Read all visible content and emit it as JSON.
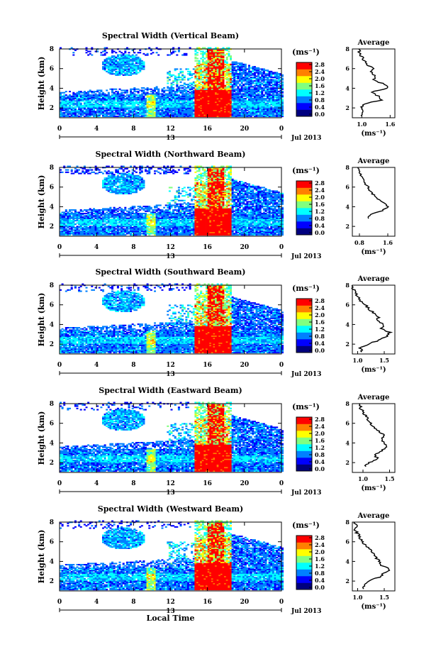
{
  "chart_data": {
    "type": "heatmap",
    "shared": {
      "ylabel": "Height (km)",
      "x_ticks": [
        "0",
        "4",
        "8",
        "12",
        "16",
        "20",
        "0"
      ],
      "xlim": [
        0,
        24
      ],
      "ylim": [
        1,
        8
      ],
      "y_ticks": [
        "2",
        "4",
        "6",
        "8"
      ],
      "day_label": "13",
      "month_label": "Jul 2013",
      "xlabel": "Local Time",
      "colorbar_unit": "(ms⁻¹)",
      "colorbar_ticks": [
        "0.0",
        "0.4",
        "0.8",
        "1.2",
        "1.6",
        "2.0",
        "2.4",
        "2.8"
      ],
      "colorbar_range": [
        0,
        3
      ],
      "colors": [
        "#00007f",
        "#0000ff",
        "#0080ff",
        "#00ffff",
        "#80ff80",
        "#ffff00",
        "#ff8000",
        "#ff0000"
      ],
      "avg_title": "Average",
      "avg_xlabel": "(ms⁻¹)",
      "avg_yticks": [
        "2",
        "4",
        "6",
        "8"
      ]
    },
    "panels": [
      {
        "title": "Spectral Width (Vertical Beam)",
        "avg_xticks": [
          "1.0",
          "1.6"
        ],
        "avg_xlim": [
          0.8,
          1.7
        ],
        "average": {
          "height": [
            1.2,
            1.6,
            2.0,
            2.4,
            2.8,
            3.2,
            3.6,
            4.0,
            4.4,
            4.8,
            5.2,
            5.6,
            6.0,
            6.4,
            6.8,
            7.2,
            7.6,
            8.0
          ],
          "width": [
            1.0,
            1.02,
            0.98,
            1.05,
            1.4,
            1.35,
            1.2,
            1.55,
            1.5,
            1.25,
            1.3,
            1.2,
            1.25,
            1.1,
            1.05,
            1.0,
            0.95,
            0.95
          ]
        }
      },
      {
        "title": "Spectral Width (Northward Beam)",
        "avg_xticks": [
          "0.8",
          "1.6"
        ],
        "avg_xlim": [
          0.6,
          1.8
        ],
        "average": {
          "height": [
            2.8,
            3.2,
            3.6,
            4.0,
            4.4,
            4.8,
            5.2,
            5.6,
            6.0,
            6.4,
            6.8,
            7.2,
            7.6,
            8.0
          ],
          "width": [
            1.05,
            1.1,
            1.45,
            1.6,
            1.5,
            1.3,
            1.2,
            1.1,
            1.05,
            0.95,
            0.9,
            0.85,
            0.8,
            0.75
          ]
        }
      },
      {
        "title": "Spectral Width (Southward Beam)",
        "avg_xticks": [
          "1.0",
          "1.5"
        ],
        "avg_xlim": [
          0.9,
          1.7
        ],
        "average": {
          "height": [
            1.2,
            1.6,
            2.0,
            2.4,
            2.8,
            3.2,
            3.6,
            4.0,
            4.4,
            4.8,
            5.2,
            5.6,
            6.0,
            6.4,
            6.8,
            7.2,
            7.6,
            8.0
          ],
          "width": [
            1.1,
            1.05,
            1.2,
            1.4,
            1.55,
            1.6,
            1.45,
            1.5,
            1.35,
            1.4,
            1.3,
            1.2,
            1.15,
            1.05,
            1.0,
            0.95,
            0.92,
            0.9
          ]
        }
      },
      {
        "title": "Spectral Width (Eastward Beam)",
        "avg_xticks": [
          "1.0",
          "1.5"
        ],
        "avg_xlim": [
          0.8,
          1.6
        ],
        "average": {
          "height": [
            1.6,
            2.0,
            2.4,
            2.8,
            3.2,
            3.6,
            4.0,
            4.4,
            4.8,
            5.2,
            5.6,
            6.0,
            6.4,
            6.8,
            7.2,
            7.6,
            8.0
          ],
          "width": [
            1.05,
            1.1,
            1.3,
            1.2,
            1.35,
            1.45,
            1.4,
            1.35,
            1.4,
            1.3,
            1.2,
            1.15,
            1.1,
            1.05,
            1.0,
            0.95,
            0.95
          ]
        }
      },
      {
        "title": "Spectral Width (Westward Beam)",
        "avg_xticks": [
          "1.0",
          "1.5"
        ],
        "avg_xlim": [
          0.9,
          1.7
        ],
        "average": {
          "height": [
            1.2,
            1.6,
            2.0,
            2.4,
            2.8,
            3.2,
            3.6,
            4.0,
            4.4,
            4.8,
            5.2,
            5.6,
            6.0,
            6.4,
            6.8,
            7.2,
            7.6,
            8.0
          ],
          "width": [
            1.1,
            1.15,
            1.2,
            1.4,
            1.5,
            1.6,
            1.45,
            1.4,
            1.35,
            1.3,
            1.25,
            1.15,
            1.1,
            1.05,
            1.0,
            0.95,
            0.98,
            0.95
          ]
        }
      }
    ]
  }
}
